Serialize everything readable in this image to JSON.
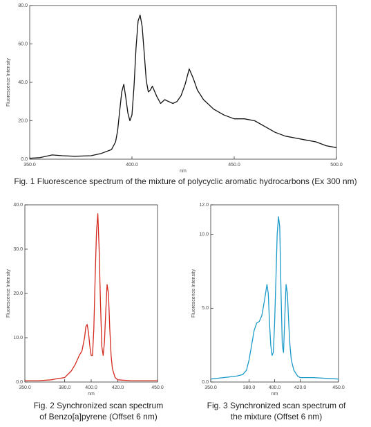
{
  "chart_data": [
    {
      "type": "line",
      "caption": "Fig. 1 Fluorescence spectrum of the mixture of polycyclic aromatic hydrocarbons (Ex 300 nm)",
      "xlabel": "nm",
      "ylabel": "Fluorescence Intensity",
      "color": "#111111",
      "xlim": [
        350,
        500
      ],
      "ylim": [
        0,
        80
      ],
      "xticks": [
        {
          "value": 350,
          "label": "350.0"
        },
        {
          "value": 400,
          "label": "400.0"
        },
        {
          "value": 450,
          "label": "450.0"
        },
        {
          "value": 500,
          "label": "500.0"
        }
      ],
      "yticks": [
        {
          "value": 0,
          "label": "0.0"
        },
        {
          "value": 20,
          "label": "20.0"
        },
        {
          "value": 40,
          "label": "40.0"
        },
        {
          "value": 60,
          "label": "60.0"
        },
        {
          "value": 80,
          "label": "80.0"
        }
      ],
      "x": [
        350,
        355,
        361,
        366,
        372,
        380,
        385,
        390,
        392,
        393,
        394,
        395,
        396,
        397,
        398,
        399,
        400,
        401,
        402,
        403,
        404,
        405,
        406,
        407,
        408,
        409,
        410,
        412,
        414,
        416,
        418,
        420,
        422,
        424,
        426,
        428,
        430,
        432,
        435,
        440,
        445,
        450,
        455,
        460,
        465,
        470,
        475,
        480,
        485,
        490,
        495,
        500
      ],
      "values": [
        0.5,
        0.8,
        2.2,
        1.8,
        1.5,
        1.8,
        3,
        5,
        9,
        15,
        25,
        35,
        39,
        32,
        24,
        20,
        23,
        38,
        58,
        72,
        75,
        69,
        55,
        41,
        35,
        36,
        38,
        33,
        29,
        31,
        30,
        29,
        30,
        33,
        39,
        47,
        42,
        36,
        31,
        26,
        23,
        21,
        21,
        20,
        17,
        14,
        12,
        11,
        10,
        9,
        7,
        6
      ]
    },
    {
      "type": "line",
      "caption": "Fig. 2 Synchronized scan spectrum of Benzo[a]pyrene (Offset 6 nm)",
      "xlabel": "nm",
      "ylabel": "Fluorescence Intensity",
      "color": "#d42a1e",
      "xlim": [
        350,
        450
      ],
      "ylim": [
        0,
        40
      ],
      "xticks": [
        {
          "value": 350,
          "label": "350.0"
        },
        {
          "value": 380,
          "label": "380.0"
        },
        {
          "value": 400,
          "label": "400.0"
        },
        {
          "value": 420,
          "label": "420.0"
        },
        {
          "value": 450,
          "label": "450.0"
        }
      ],
      "yticks": [
        {
          "value": 0,
          "label": "0.0"
        },
        {
          "value": 10,
          "label": "10.0"
        },
        {
          "value": 20,
          "label": "20.0"
        },
        {
          "value": 30,
          "label": "30.0"
        },
        {
          "value": 40,
          "label": "40.0"
        }
      ],
      "x": [
        350,
        360,
        370,
        375,
        380,
        385,
        388,
        391,
        393,
        395,
        396,
        397,
        398,
        399,
        400,
        401,
        402,
        403,
        404,
        405,
        406,
        407,
        408,
        409,
        410,
        411,
        412,
        413,
        414,
        415,
        416,
        418,
        420,
        430,
        450
      ],
      "values": [
        0.3,
        0.3,
        0.5,
        0.8,
        1,
        2.5,
        4,
        6,
        7,
        10,
        12.5,
        13,
        11,
        8,
        6,
        6,
        12,
        24,
        34,
        38,
        30,
        18,
        8,
        6,
        9,
        16,
        22,
        20,
        12,
        6,
        3,
        1,
        0.5,
        0.3,
        0.3
      ]
    },
    {
      "type": "line",
      "caption": "Fig. 3 Synchronized scan spectrum of the mixture (Offset 6 nm)",
      "xlabel": "nm",
      "ylabel": "Fluorescence Intensity",
      "color": "#1a9ac9",
      "xlim": [
        350,
        450
      ],
      "ylim": [
        0,
        12
      ],
      "xticks": [
        {
          "value": 350,
          "label": "350.0"
        },
        {
          "value": 380,
          "label": "380.0"
        },
        {
          "value": 400,
          "label": "400.0"
        },
        {
          "value": 420,
          "label": "420.0"
        },
        {
          "value": 450,
          "label": "450.0"
        }
      ],
      "yticks": [
        {
          "value": 0,
          "label": "0.0"
        },
        {
          "value": 5,
          "label": "5.0"
        },
        {
          "value": 10,
          "label": "10.0"
        },
        {
          "value": 12,
          "label": "12.0"
        }
      ],
      "x": [
        350,
        360,
        370,
        375,
        378,
        380,
        382,
        384,
        386,
        388,
        390,
        392,
        394,
        395,
        396,
        397,
        398,
        399,
        400,
        401,
        402,
        403,
        404,
        405,
        406,
        407,
        408,
        409,
        410,
        411,
        412,
        413,
        415,
        418,
        420,
        430,
        450
      ],
      "values": [
        0.2,
        0.3,
        0.4,
        0.5,
        0.8,
        1.5,
        2.5,
        3.5,
        4,
        4.1,
        4.5,
        5.5,
        6.6,
        6,
        4,
        2.5,
        1.8,
        2,
        4,
        7,
        10,
        11.2,
        10.5,
        6,
        2.5,
        2,
        4.5,
        6.6,
        6,
        4,
        2.5,
        1.5,
        0.8,
        0.4,
        0.3,
        0.3,
        0.2
      ]
    }
  ]
}
